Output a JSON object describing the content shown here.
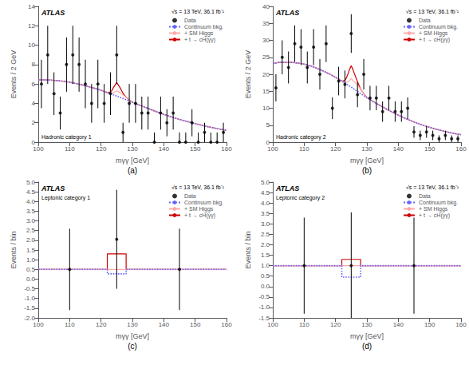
{
  "chart_data": [
    {
      "type": "line",
      "title": "(a)",
      "xlabel": "mγγ [GeV]",
      "ylabel": "Events / 2 GeV",
      "annotations": [
        "ATLAS",
        "Hadronic category 1",
        "√s = 13 TeV, 36.1 fb⁻¹"
      ],
      "xlim": [
        100,
        160
      ],
      "xticks": [
        100,
        110,
        120,
        130,
        140,
        150,
        160
      ],
      "ylim": [
        0,
        14
      ],
      "yticks": [
        0,
        2,
        4,
        6,
        8,
        10,
        12,
        14
      ],
      "grid": false,
      "legend": "upper right",
      "series": [
        {
          "name": "Data",
          "type": "scatter",
          "marker": "circle",
          "color": "#000000",
          "x": [
            101,
            103,
            105,
            107,
            109,
            111,
            113,
            115,
            117,
            119,
            121,
            123,
            125,
            127,
            129,
            131,
            133,
            135,
            137,
            139,
            141,
            143,
            145,
            147,
            149,
            151,
            153,
            155,
            157,
            159
          ],
          "values": [
            6,
            9,
            5,
            3,
            8,
            9,
            8,
            6,
            4,
            6,
            4,
            5,
            9,
            1,
            4,
            4,
            3,
            3,
            0.0,
            3,
            2,
            3,
            0.0,
            0.0,
            2,
            0.0,
            1,
            0.0,
            0.0,
            1
          ],
          "yerr_low": [
            2.5,
            3.0,
            2.2,
            1.7,
            2.8,
            3.0,
            2.8,
            2.5,
            2.0,
            2.5,
            2.0,
            2.2,
            3.0,
            1.0,
            2.0,
            2.0,
            1.7,
            1.7,
            0,
            1.7,
            1.4,
            1.7,
            0,
            0,
            1.4,
            0,
            1.0,
            0,
            0,
            1.0
          ],
          "yerr_high": [
            2.5,
            3.0,
            2.2,
            1.7,
            2.8,
            3.0,
            2.8,
            2.5,
            2.0,
            2.5,
            2.0,
            2.2,
            3.0,
            1.0,
            2.0,
            2.0,
            1.7,
            1.7,
            1.0,
            1.7,
            1.4,
            1.7,
            1.0,
            1.0,
            1.4,
            1.0,
            1.0,
            1.0,
            1.0,
            1.0
          ]
        },
        {
          "name": "Continuum bkg.",
          "type": "line",
          "line_style": "dotted",
          "color": "#6666ff",
          "x": [
            100,
            102,
            104,
            106,
            108,
            110,
            112,
            114,
            116,
            118,
            120,
            122,
            124,
            126,
            128,
            130,
            133,
            136,
            139,
            142,
            145,
            148,
            151,
            154,
            157,
            160
          ],
          "values": [
            6.42,
            6.42,
            6.4,
            6.35,
            6.28,
            6.18,
            6.05,
            5.9,
            5.73,
            5.55,
            5.35,
            5.12,
            4.88,
            4.63,
            4.38,
            4.12,
            3.73,
            3.35,
            2.98,
            2.65,
            2.35,
            2.08,
            1.83,
            1.6,
            1.4,
            1.22
          ]
        },
        {
          "name": "+ SM Higgs",
          "type": "line",
          "line_style": "solid",
          "color": "#ffaaaa",
          "x": [
            100,
            102,
            104,
            106,
            108,
            110,
            112,
            114,
            116,
            118,
            120,
            122,
            123,
            124,
            124.5,
            125,
            125.5,
            126,
            127,
            128,
            130,
            133,
            136,
            139,
            142,
            145,
            148,
            151,
            154,
            157,
            160
          ],
          "values": [
            6.42,
            6.42,
            6.4,
            6.35,
            6.28,
            6.18,
            6.05,
            5.9,
            5.73,
            5.55,
            5.35,
            5.12,
            5.05,
            5.1,
            5.2,
            5.3,
            5.2,
            5.1,
            4.88,
            4.63,
            4.12,
            3.73,
            3.35,
            2.98,
            2.65,
            2.35,
            2.08,
            1.83,
            1.6,
            1.4,
            1.22
          ]
        },
        {
          "name": "+ t → cH(γγ)",
          "type": "line",
          "line_style": "solid",
          "color": "#cc0000",
          "x": [
            100,
            102,
            104,
            106,
            108,
            110,
            112,
            114,
            116,
            118,
            120,
            122,
            123,
            123.5,
            124,
            124.5,
            125,
            125.5,
            126,
            126.5,
            127,
            128,
            130,
            133,
            136,
            139,
            142,
            145,
            148,
            151,
            154,
            157,
            160
          ],
          "values": [
            6.42,
            6.42,
            6.4,
            6.35,
            6.28,
            6.18,
            6.05,
            5.9,
            5.73,
            5.55,
            5.35,
            5.12,
            5.18,
            5.35,
            5.65,
            5.9,
            6.15,
            5.9,
            5.65,
            5.35,
            5.05,
            4.63,
            4.12,
            3.73,
            3.35,
            2.98,
            2.65,
            2.35,
            2.08,
            1.83,
            1.6,
            1.4,
            1.22
          ]
        }
      ]
    },
    {
      "type": "line",
      "title": "(b)",
      "xlabel": "mγγ [GeV]",
      "ylabel": "Events / 2 GeV",
      "annotations": [
        "ATLAS",
        "Hadronic category 2",
        "√s = 13 TeV, 36.1 fb⁻¹"
      ],
      "xlim": [
        100,
        160
      ],
      "xticks": [
        100,
        110,
        120,
        130,
        140,
        150,
        160
      ],
      "ylim": [
        0,
        40
      ],
      "yticks": [
        0,
        5,
        10,
        15,
        20,
        25,
        30,
        35,
        40
      ],
      "grid": false,
      "legend": "upper right",
      "series": [
        {
          "name": "Data",
          "type": "scatter",
          "marker": "circle",
          "color": "#000000",
          "x": [
            101,
            103,
            105,
            107,
            109,
            111,
            113,
            115,
            117,
            119,
            121,
            123,
            125,
            127,
            129,
            131,
            133,
            135,
            137,
            139,
            141,
            143,
            145,
            147,
            149,
            151,
            153,
            155,
            157,
            159
          ],
          "values": [
            16,
            25,
            22,
            29,
            28,
            22,
            28,
            20,
            29,
            10,
            18,
            17,
            32,
            14,
            20,
            13,
            13,
            9,
            13,
            9,
            9,
            10,
            3,
            2,
            3,
            2,
            1,
            2,
            1,
            1
          ],
          "yerr_low": [
            4.0,
            5.0,
            4.7,
            5.4,
            5.3,
            4.7,
            5.3,
            4.5,
            5.4,
            3.2,
            4.2,
            4.1,
            5.7,
            3.7,
            4.5,
            3.6,
            3.6,
            3.0,
            3.6,
            3.0,
            3.0,
            3.2,
            1.7,
            1.4,
            1.7,
            1.4,
            1.0,
            1.4,
            1.0,
            1.0
          ],
          "yerr_high": [
            4.0,
            5.0,
            4.7,
            5.4,
            5.3,
            4.7,
            5.3,
            4.5,
            5.4,
            3.2,
            4.2,
            4.1,
            5.7,
            3.7,
            4.5,
            3.6,
            3.6,
            3.0,
            3.6,
            3.0,
            3.0,
            3.2,
            1.7,
            1.4,
            1.7,
            1.4,
            1.0,
            1.4,
            1.0,
            1.0
          ]
        },
        {
          "name": "Continuum bkg.",
          "type": "line",
          "line_style": "dotted",
          "color": "#6666ff",
          "x": [
            100,
            102,
            104,
            106,
            108,
            110,
            112,
            114,
            116,
            118,
            120,
            122,
            124,
            126,
            128,
            130,
            133,
            136,
            139,
            142,
            145,
            148,
            151,
            154,
            157,
            160
          ],
          "values": [
            23.2,
            23.5,
            23.6,
            23.5,
            23.3,
            23.0,
            22.5,
            21.8,
            21.0,
            20.1,
            19.1,
            18.0,
            16.8,
            15.6,
            14.3,
            13.1,
            11.4,
            9.85,
            8.4,
            7.1,
            5.95,
            4.95,
            4.1,
            3.35,
            2.7,
            2.2
          ]
        },
        {
          "name": "+ SM Higgs",
          "type": "line",
          "line_style": "solid",
          "color": "#ffaaaa",
          "x": [
            100,
            102,
            104,
            106,
            108,
            110,
            112,
            114,
            116,
            118,
            120,
            122,
            123,
            124,
            124.5,
            125,
            125.5,
            126,
            127,
            128,
            130,
            133,
            136,
            139,
            142,
            145,
            148,
            151,
            154,
            157,
            160
          ],
          "values": [
            23.2,
            23.5,
            23.6,
            23.5,
            23.3,
            23.0,
            22.5,
            21.8,
            21.0,
            20.1,
            19.1,
            18.0,
            17.5,
            17.8,
            18.2,
            18.8,
            18.2,
            17.8,
            16.8,
            15.6,
            13.1,
            11.4,
            9.85,
            8.4,
            7.1,
            5.95,
            4.95,
            4.1,
            3.35,
            2.7,
            2.2
          ]
        },
        {
          "name": "+ t → cH(γγ)",
          "type": "line",
          "line_style": "solid",
          "color": "#cc0000",
          "x": [
            100,
            102,
            104,
            106,
            108,
            110,
            112,
            114,
            116,
            118,
            120,
            122,
            123,
            123.5,
            124,
            124.5,
            125,
            125.5,
            126,
            126.5,
            127,
            128,
            130,
            133,
            136,
            139,
            142,
            145,
            148,
            151,
            154,
            157,
            160
          ],
          "values": [
            23.2,
            23.5,
            23.6,
            23.5,
            23.3,
            23.0,
            22.5,
            21.8,
            21.0,
            20.1,
            19.1,
            18.0,
            18.2,
            19.0,
            20.2,
            21.5,
            22.5,
            21.5,
            20.2,
            19.0,
            17.8,
            15.6,
            13.1,
            11.4,
            9.85,
            8.4,
            7.1,
            5.95,
            4.95,
            4.1,
            3.35,
            2.7,
            2.2
          ]
        }
      ]
    },
    {
      "type": "line",
      "title": "(c)",
      "xlabel": "mγγ [GeV]",
      "ylabel": "Events / bin",
      "annotations": [
        "ATLAS",
        "Leptonic category 1",
        "√s = 13 TeV, 36.1 fb⁻¹"
      ],
      "xlim": [
        100,
        160
      ],
      "xticks": [
        100,
        110,
        120,
        130,
        140,
        150,
        160
      ],
      "ylim": [
        -2,
        5
      ],
      "yticks": [
        {
          "value": -2,
          "label": "-2.0"
        },
        -1.5,
        {
          "value": -1,
          "label": "-1.0"
        },
        -0.5,
        {
          "value": 0,
          "label": "0.0"
        },
        0.5,
        {
          "value": 1,
          "label": "1.0"
        },
        1.5,
        {
          "value": 2,
          "label": "2.0"
        },
        2.5,
        {
          "value": 3,
          "label": "3.0"
        },
        3.5,
        {
          "value": 4,
          "label": "4.0"
        },
        4.5,
        {
          "value": 5,
          "label": "5.0"
        }
      ],
      "grid": false,
      "legend": "upper right",
      "series": [
        {
          "name": "Data",
          "type": "scatter",
          "marker": "circle",
          "color": "#000000",
          "x": [
            110,
            125,
            145
          ],
          "values": [
            0.5,
            2.05,
            0.5
          ],
          "yerr_low": [
            2.1,
            2.55,
            2.1
          ],
          "yerr_high": [
            2.1,
            2.55,
            2.1
          ]
        },
        {
          "name": "Continuum bkg.",
          "type": "line",
          "line_style": "dotted",
          "color": "#6666ff",
          "x": [
            100,
            122,
            122,
            128,
            128,
            160
          ],
          "values": [
            0.5,
            0.5,
            0.27,
            0.27,
            0.5,
            0.5
          ]
        },
        {
          "name": "+ SM Higgs",
          "type": "line",
          "line_style": "solid",
          "color": "#ffaaaa",
          "x": [
            100,
            160
          ],
          "values": [
            0.5,
            0.5
          ]
        },
        {
          "name": "+ t → cH(γγ)",
          "type": "line",
          "line_style": "solid",
          "color": "#cc0000",
          "x": [
            100,
            122,
            122,
            128,
            128,
            160
          ],
          "values": [
            0.5,
            0.5,
            1.3,
            1.3,
            0.5,
            0.5
          ]
        }
      ]
    },
    {
      "type": "line",
      "title": "(d)",
      "xlabel": "mγγ [GeV]",
      "ylabel": "Events / bin",
      "annotations": [
        "ATLAS",
        "Leptonic category 2",
        "√s = 13 TeV, 36.1 fb⁻¹"
      ],
      "xlim": [
        100,
        160
      ],
      "xticks": [
        100,
        110,
        120,
        130,
        140,
        150,
        160
      ],
      "ylim": [
        -1.5,
        5
      ],
      "yticks": [
        -1.5,
        {
          "value": -1,
          "label": "-1.0"
        },
        -0.5,
        {
          "value": 0,
          "label": "0.0"
        },
        0.5,
        {
          "value": 1,
          "label": "1.0"
        },
        1.5,
        {
          "value": 2,
          "label": "2.0"
        },
        2.5,
        {
          "value": 3,
          "label": "3.0"
        },
        3.5,
        {
          "value": 4,
          "label": "4.0"
        },
        4.5,
        {
          "value": 5,
          "label": "5.0"
        }
      ],
      "grid": false,
      "legend": "upper right",
      "series": [
        {
          "name": "Data",
          "type": "scatter",
          "marker": "circle",
          "color": "#000000",
          "x": [
            110,
            125,
            145
          ],
          "values": [
            1.0,
            1.0,
            1.0
          ],
          "yerr_low": [
            2.3,
            2.55,
            2.3
          ],
          "yerr_high": [
            2.3,
            2.55,
            2.3
          ]
        },
        {
          "name": "Continuum bkg.",
          "type": "line",
          "line_style": "dotted",
          "color": "#6666ff",
          "x": [
            100,
            122,
            122,
            128,
            128,
            160
          ],
          "values": [
            1.0,
            1.0,
            0.45,
            0.45,
            1.0,
            1.0
          ]
        },
        {
          "name": "+ SM Higgs",
          "type": "line",
          "line_style": "solid",
          "color": "#ffaaaa",
          "x": [
            100,
            160
          ],
          "values": [
            1.0,
            1.0
          ]
        },
        {
          "name": "+ t → cH(γγ)",
          "type": "line",
          "line_style": "solid",
          "color": "#cc0000",
          "x": [
            100,
            122,
            122,
            128,
            128,
            160
          ],
          "values": [
            1.0,
            1.0,
            1.3,
            1.3,
            1.0,
            1.0
          ]
        }
      ]
    }
  ]
}
